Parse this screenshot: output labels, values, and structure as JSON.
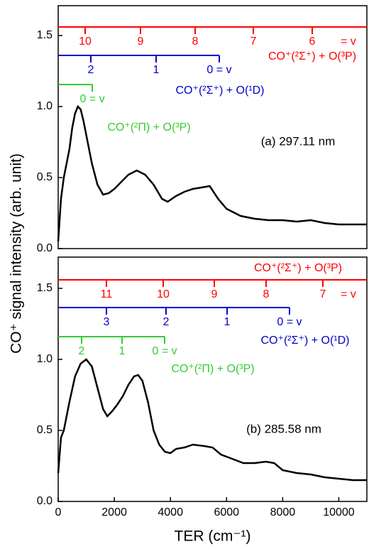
{
  "chart_data": [
    {
      "type": "line",
      "ylabel": "CO⁺ signal intensity (arb. unit)",
      "annotation": "(a) 297.11 nm",
      "xlim": [
        0,
        11000
      ],
      "ylim": [
        0,
        1.71
      ],
      "yticks": [
        {
          "value": 0,
          "label": "0.0"
        },
        {
          "value": 0.5,
          "label": "0.5"
        },
        {
          "value": 1,
          "label": "1.0"
        },
        {
          "value": 1.5,
          "label": "1.5"
        }
      ],
      "color": "#000000",
      "x": [
        0,
        100,
        200,
        300,
        400,
        500,
        600,
        700,
        800,
        900,
        1000,
        1200,
        1400,
        1600,
        1800,
        2000,
        2200,
        2500,
        2800,
        3100,
        3400,
        3700,
        3900,
        4200,
        4500,
        4800,
        5100,
        5400,
        5700,
        6000,
        6500,
        7000,
        7500,
        8000,
        8500,
        9000,
        9500,
        10000,
        10500,
        11000
      ],
      "values": [
        0.05,
        0.35,
        0.5,
        0.6,
        0.7,
        0.85,
        0.95,
        1.0,
        0.98,
        0.9,
        0.8,
        0.6,
        0.45,
        0.38,
        0.39,
        0.42,
        0.46,
        0.52,
        0.55,
        0.52,
        0.45,
        0.35,
        0.33,
        0.37,
        0.4,
        0.42,
        0.43,
        0.44,
        0.35,
        0.28,
        0.23,
        0.21,
        0.2,
        0.2,
        0.19,
        0.2,
        0.18,
        0.17,
        0.17,
        0.17
      ],
      "progressions": [
        {
          "name": "CO⁺(²Σ⁺) + O(³P)",
          "color": "#ff0000",
          "y": 1.56,
          "xrange": [
            0,
            11000
          ],
          "suffix": "= v",
          "ticks": [
            {
              "x": 961,
              "label": "10"
            },
            {
              "x": 2933,
              "label": "9"
            },
            {
              "x": 4880,
              "label": "8"
            },
            {
              "x": 6953,
              "label": "7"
            },
            {
              "x": 9052,
              "label": "6"
            }
          ]
        },
        {
          "name": "CO⁺(²Σ⁺) + O(¹D)",
          "color": "#0000cc",
          "y": 1.36,
          "xrange": [
            0,
            5740
          ],
          "ticks": [
            {
              "x": 1163,
              "label": "2"
            },
            {
              "x": 3489,
              "label": "1"
            },
            {
              "x": 5740,
              "label": "0 = v"
            }
          ]
        },
        {
          "name": "CO⁺(²Π) + O(³P)",
          "color": "#33cc33",
          "y": 1.155,
          "xrange": [
            0,
            1214
          ],
          "ticks": [
            {
              "x": 1214,
              "label": "0 = v"
            }
          ]
        }
      ]
    },
    {
      "type": "line",
      "xlabel": "TER (cm⁻¹)",
      "annotation": "(b) 285.58 nm",
      "xlim": [
        0,
        11000
      ],
      "ylim": [
        0,
        1.72
      ],
      "xticks": [
        0,
        2000,
        4000,
        6000,
        8000,
        10000
      ],
      "yticks": [
        {
          "value": 0,
          "label": "0.0"
        },
        {
          "value": 0.5,
          "label": "0.5"
        },
        {
          "value": 1,
          "label": "1.0"
        },
        {
          "value": 1.5,
          "label": "1.5"
        }
      ],
      "color": "#000000",
      "x": [
        0,
        100,
        200,
        400,
        600,
        800,
        1000,
        1200,
        1400,
        1600,
        1750,
        1900,
        2100,
        2300,
        2500,
        2700,
        2850,
        3000,
        3200,
        3400,
        3600,
        3800,
        4000,
        4200,
        4500,
        4800,
        5200,
        5500,
        5800,
        6200,
        6600,
        7000,
        7400,
        7700,
        8000,
        8500,
        9000,
        9500,
        10000,
        10500,
        11000
      ],
      "values": [
        0.2,
        0.45,
        0.5,
        0.7,
        0.88,
        0.97,
        1.0,
        0.95,
        0.8,
        0.65,
        0.6,
        0.63,
        0.68,
        0.74,
        0.82,
        0.88,
        0.89,
        0.85,
        0.7,
        0.5,
        0.4,
        0.35,
        0.34,
        0.37,
        0.38,
        0.4,
        0.39,
        0.38,
        0.33,
        0.3,
        0.27,
        0.27,
        0.28,
        0.27,
        0.22,
        0.2,
        0.19,
        0.17,
        0.16,
        0.15,
        0.15
      ],
      "progressions": [
        {
          "name": "CO⁺(²Σ⁺) + O(³P)",
          "color": "#ff0000",
          "y": 1.56,
          "xrange": [
            0,
            11000
          ],
          "suffix": "= v",
          "ticks": [
            {
              "x": 1719,
              "label": "11"
            },
            {
              "x": 3742,
              "label": "10"
            },
            {
              "x": 5563,
              "label": "9"
            },
            {
              "x": 7408,
              "label": "8"
            },
            {
              "x": 9431,
              "label": "7"
            }
          ]
        },
        {
          "name": "CO⁺(²Σ⁺) + O(¹D)",
          "color": "#0000cc",
          "y": 1.365,
          "xrange": [
            0,
            8243
          ],
          "ticks": [
            {
              "x": 1719,
              "label": "3"
            },
            {
              "x": 3843,
              "label": "2"
            },
            {
              "x": 6018,
              "label": "1"
            },
            {
              "x": 8243,
              "label": "0 = v"
            }
          ]
        },
        {
          "name": "CO⁺(²Π) + O(³P)",
          "color": "#33cc33",
          "y": 1.16,
          "xrange": [
            0,
            3793
          ],
          "ticks": [
            {
              "x": 834,
              "label": "2"
            },
            {
              "x": 2275,
              "label": "1"
            },
            {
              "x": 3793,
              "label": "0 = v"
            }
          ]
        }
      ]
    }
  ]
}
